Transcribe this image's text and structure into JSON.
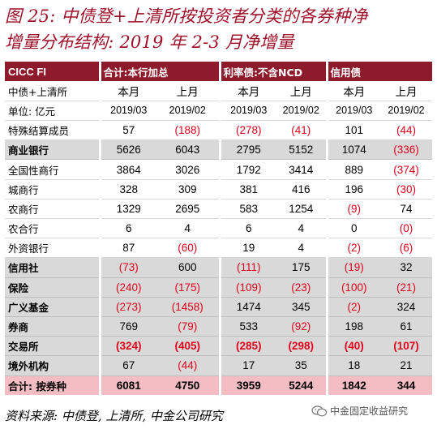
{
  "title": {
    "line1": "图 25: 中债登+上清所按投资者分类的各券种净",
    "line2": "增量分布结构: 2019 年 2-3 月净增量"
  },
  "header": {
    "brand": "CICC FI",
    "groups": [
      "合计:本行加总",
      "利率债:不含NCD",
      "信用债"
    ]
  },
  "subheader": {
    "label": "中债+上清所",
    "cols": [
      "本月",
      "上月",
      "本月",
      "上月",
      "本月",
      "上月"
    ]
  },
  "period_row": {
    "label": "单位: 亿元",
    "cols": [
      "2019/03",
      "2019/02",
      "2019/03",
      "2019/02",
      "2019/03",
      "2019/02"
    ]
  },
  "rows": [
    {
      "label": "特殊结算成员",
      "style": "plain",
      "values": [
        "57",
        "(188)",
        "(278)",
        "(41)",
        "101",
        "(44)"
      ]
    },
    {
      "label": "商业银行",
      "style": "shade",
      "values": [
        "5626",
        "6043",
        "2795",
        "5152",
        "1074",
        "(336)"
      ]
    },
    {
      "label": "全国性商行",
      "style": "plain",
      "values": [
        "3864",
        "3026",
        "1792",
        "3414",
        "889",
        "(374)"
      ]
    },
    {
      "label": "城商行",
      "style": "plain",
      "values": [
        "328",
        "309",
        "381",
        "416",
        "196",
        "(30)"
      ]
    },
    {
      "label": "农商行",
      "style": "plain",
      "values": [
        "1329",
        "2695",
        "583",
        "1254",
        "(9)",
        "74"
      ]
    },
    {
      "label": "农合行",
      "style": "plain",
      "values": [
        "6",
        "4",
        "6",
        "4",
        "0",
        "(0)"
      ]
    },
    {
      "label": "外资银行",
      "style": "plain",
      "values": [
        "87",
        "(60)",
        "19",
        "4",
        "(2)",
        "(6)"
      ]
    },
    {
      "label": "信用社",
      "style": "shade",
      "values": [
        "(73)",
        "600",
        "(111)",
        "175",
        "(19)",
        "32"
      ]
    },
    {
      "label": "保险",
      "style": "shade",
      "values": [
        "(240)",
        "(175)",
        "(109)",
        "(23)",
        "(100)",
        "(21)"
      ]
    },
    {
      "label": "广义基金",
      "style": "shade",
      "values": [
        "(273)",
        "(1458)",
        "1474",
        "345",
        "(2)",
        "324"
      ]
    },
    {
      "label": "券商",
      "style": "shade",
      "values": [
        "769",
        "(79)",
        "533",
        "(92)",
        "198",
        "61"
      ]
    },
    {
      "label": "交易所",
      "style": "shade",
      "values": [
        "(324)",
        "(405)",
        "(285)",
        "(298)",
        "(40)",
        "(107)"
      ],
      "bold_values": true
    },
    {
      "label": "境外机构",
      "style": "shade",
      "values": [
        "67",
        "(44)",
        "17",
        "35",
        "18",
        "21"
      ]
    },
    {
      "label": "合计: 按券种",
      "style": "total",
      "values": [
        "6081",
        "4750",
        "3959",
        "5244",
        "1842",
        "344"
      ]
    }
  ],
  "footer": {
    "source": "资料来源: 中债登, 上清所, 中金公司研究",
    "watermark": "中金固定收益研究"
  },
  "colors": {
    "title": "#a0112a",
    "header_bg": "#8e1b2c",
    "shade_bg": "#d9d9d9",
    "total_bg": "#f4bcc3",
    "negative": "#e0001b"
  },
  "icons": {
    "watermark": "wechat-icon"
  }
}
